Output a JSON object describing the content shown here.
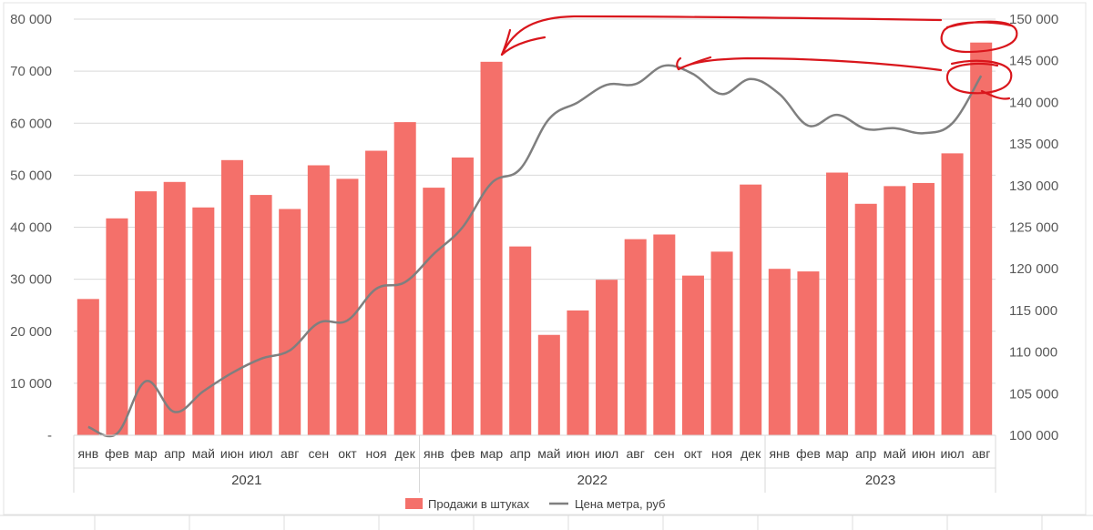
{
  "chart_data": {
    "type": "bar",
    "title": "",
    "x_groups": [
      {
        "label": "2021",
        "months": [
          "янв",
          "фев",
          "мар",
          "апр",
          "май",
          "июн",
          "июл",
          "авг",
          "сен",
          "окт",
          "ноя",
          "дек"
        ]
      },
      {
        "label": "2022",
        "months": [
          "янв",
          "фев",
          "мар",
          "апр",
          "май",
          "июн",
          "июл",
          "авг",
          "сен",
          "окт",
          "ноя",
          "дек"
        ]
      },
      {
        "label": "2023",
        "months": [
          "янв",
          "фев",
          "мар",
          "апр",
          "май",
          "июн",
          "июл",
          "авг"
        ]
      }
    ],
    "categories": [
      "янв",
      "фев",
      "мар",
      "апр",
      "май",
      "июн",
      "июл",
      "авг",
      "сен",
      "окт",
      "ноя",
      "дек",
      "янв",
      "фев",
      "мар",
      "апр",
      "май",
      "июн",
      "июл",
      "авг",
      "сен",
      "окт",
      "ноя",
      "дек",
      "янв",
      "фев",
      "мар",
      "апр",
      "май",
      "июн",
      "июл",
      "авг"
    ],
    "series": [
      {
        "name": "Продажи в штуках",
        "type": "bar",
        "axis": "left",
        "color": "#f4706a",
        "values": [
          26200,
          41700,
          46900,
          48700,
          43800,
          52900,
          46200,
          43500,
          51900,
          49300,
          54700,
          60200,
          47600,
          53400,
          71800,
          36300,
          19300,
          24000,
          29900,
          37700,
          38600,
          30700,
          35300,
          48200,
          32000,
          31500,
          50500,
          44500,
          47900,
          48500,
          54200,
          75500
        ]
      },
      {
        "name": "Цена метра, руб",
        "type": "line",
        "axis": "right",
        "color": "#7f7f7f",
        "values": [
          101000,
          100200,
          106500,
          102800,
          105300,
          107500,
          109200,
          110200,
          113500,
          113800,
          117600,
          118400,
          121800,
          125000,
          130300,
          132000,
          138000,
          140000,
          142100,
          142200,
          144400,
          143400,
          141000,
          142800,
          141000,
          137200,
          138500,
          136800,
          136900,
          136300,
          137500,
          143200
        ]
      }
    ],
    "y_left": {
      "min": 0,
      "max": 80000,
      "ticks": [
        "-",
        "10 000",
        "20 000",
        "30 000",
        "40 000",
        "50 000",
        "60 000",
        "70 000",
        "80 000"
      ]
    },
    "y_right": {
      "min": 100000,
      "max": 150000,
      "ticks": [
        "100 000",
        "105 000",
        "110 000",
        "115 000",
        "120 000",
        "125 000",
        "130 000",
        "135 000",
        "140 000",
        "145 000",
        "150 000"
      ]
    },
    "grid": true,
    "legend_position": "bottom",
    "annotation_color": "#d9161c"
  },
  "legend": {
    "bar_label": "Продажи в штуках",
    "line_label": "Цена метра, руб"
  }
}
